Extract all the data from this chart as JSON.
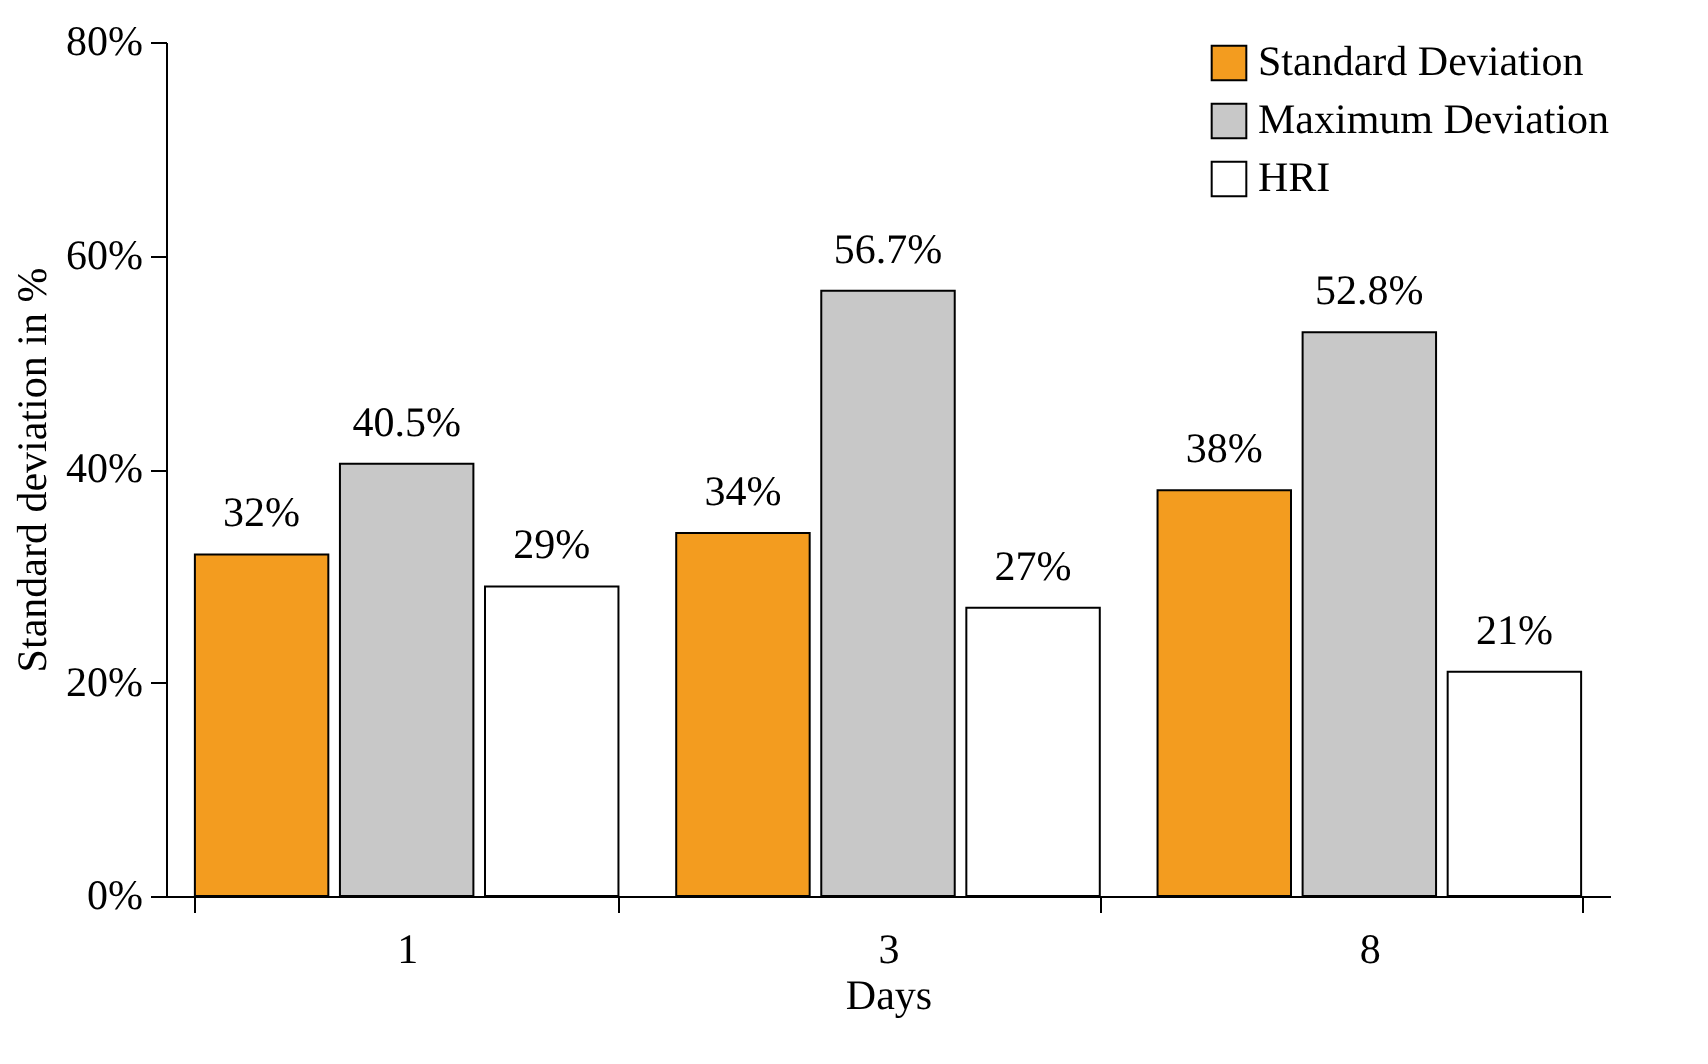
{
  "chart_data": {
    "type": "bar",
    "xlabel": "Days",
    "ylabel": "Standard deviation in %",
    "categories": [
      "1",
      "3",
      "8"
    ],
    "series": [
      {
        "name": "Standard Deviation",
        "color": "#f39c1f",
        "values": [
          32,
          34,
          38
        ],
        "value_labels": [
          "32%",
          "34%",
          "38%"
        ]
      },
      {
        "name": "Maximum Deviation",
        "color": "#c8c8c8",
        "values": [
          40.5,
          56.7,
          52.8
        ],
        "value_labels": [
          "40.5%",
          "56.7%",
          "52.8%"
        ]
      },
      {
        "name": "HRI",
        "color": "#ffffff",
        "values": [
          29,
          27,
          21
        ],
        "value_labels": [
          "29%",
          "27%",
          "21%"
        ]
      }
    ],
    "ylim": [
      0,
      80
    ],
    "yticks": [
      {
        "value": 0,
        "label": "0%"
      },
      {
        "value": 20,
        "label": "20%"
      },
      {
        "value": 40,
        "label": "40%"
      },
      {
        "value": 60,
        "label": "60%"
      },
      {
        "value": 80,
        "label": "80%"
      }
    ],
    "grid": false,
    "legend": "top right"
  }
}
